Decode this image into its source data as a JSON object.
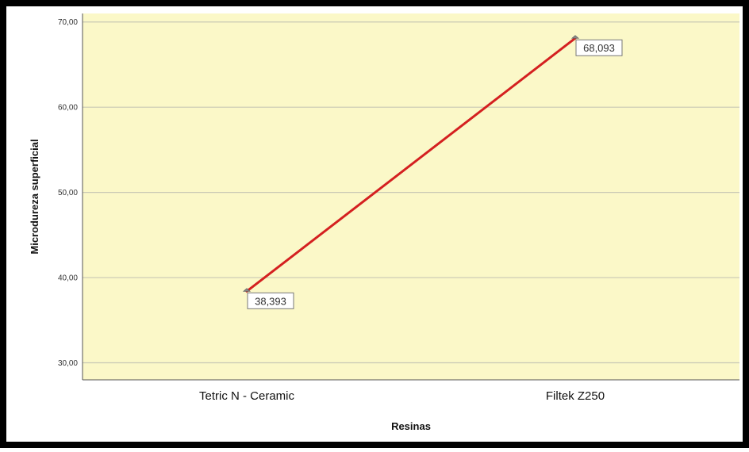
{
  "chart_data": {
    "type": "line",
    "categories": [
      "Tetric N - Ceramic",
      "Filtek Z250"
    ],
    "series": [
      {
        "values": [
          38.393,
          68.093
        ]
      }
    ],
    "data_labels": [
      "38,393",
      "68,093"
    ],
    "xlabel": "Resinas",
    "ylabel": "Microdureza superficial",
    "ylim": [
      28,
      71
    ],
    "yticks": [
      30,
      40,
      50,
      60,
      70
    ],
    "ytick_labels": [
      "30,00",
      "40,00",
      "50,00",
      "60,00",
      "70,00"
    ],
    "grid": true,
    "legend": "none",
    "colors": {
      "plot_background": "#fbf8c8",
      "line": "#d42020",
      "gridline": "#c8c8b4",
      "frame": "#000000"
    }
  }
}
